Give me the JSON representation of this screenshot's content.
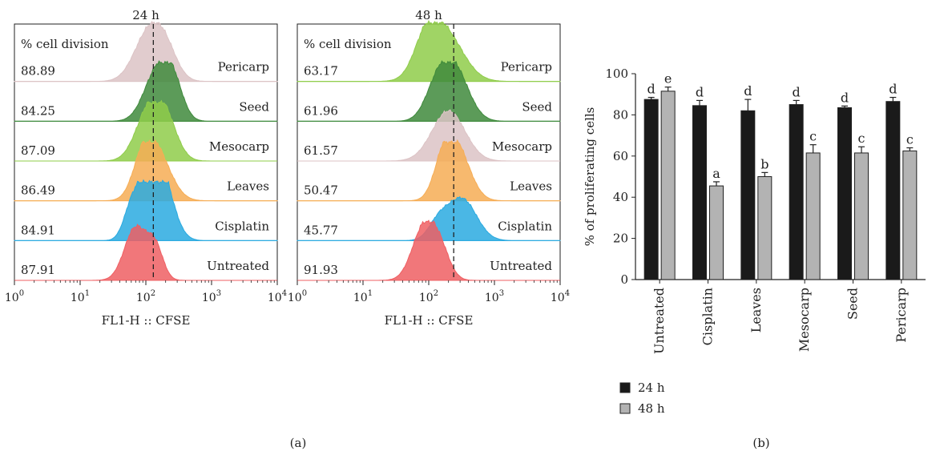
{
  "panel_a": {
    "caption": "(a)",
    "cell_division_label": "% cell division",
    "row_order": [
      "Pericarp",
      "Seed",
      "Mesocarp",
      "Leaves",
      "Cisplatin",
      "Untreated"
    ],
    "colors": {
      "Pericarp_24": "#dcc3c5",
      "Pericarp_48": "#8fcc4a",
      "Seed": "#3f8a3c",
      "Mesocarp_24": "#8fcc4a",
      "Mesocarp_48": "#dcc3c5",
      "Leaves": "#f6ad55",
      "Cisplatin": "#2aaae0",
      "Untreated": "#ef5f63"
    }
  },
  "chart_data": [
    {
      "type": "histogram",
      "title": "24 h",
      "xlabel": "FL1-H :: CFSE",
      "x_scale": "log",
      "xlim": [
        1,
        10000
      ],
      "x_ticks": [
        "10^0",
        "10^1",
        "10^2",
        "10^3",
        "10^4"
      ],
      "gate_x": 130,
      "series": [
        {
          "name": "Pericarp",
          "value_label": "88.89",
          "peaks": [
            {
              "x": 110,
              "h": 0.85,
              "w": 0.22
            },
            {
              "x": 200,
              "h": 0.45,
              "w": 0.18
            }
          ]
        },
        {
          "name": "Seed",
          "value_label": "84.25",
          "peaks": [
            {
              "x": 150,
              "h": 0.9,
              "w": 0.2
            },
            {
              "x": 260,
              "h": 0.55,
              "w": 0.15
            }
          ]
        },
        {
          "name": "Mesocarp",
          "value_label": "87.09",
          "peaks": [
            {
              "x": 110,
              "h": 0.85,
              "w": 0.2
            },
            {
              "x": 200,
              "h": 0.65,
              "w": 0.18
            }
          ]
        },
        {
          "name": "Leaves",
          "value_label": "86.49",
          "peaks": [
            {
              "x": 140,
              "h": 0.9,
              "w": 0.22
            },
            {
              "x": 90,
              "h": 0.45,
              "w": 0.15
            }
          ]
        },
        {
          "name": "Cisplatin",
          "value_label": "84.91",
          "peaks": [
            {
              "x": 110,
              "h": 0.95,
              "w": 0.18
            },
            {
              "x": 180,
              "h": 0.9,
              "w": 0.18
            },
            {
              "x": 60,
              "h": 0.45,
              "w": 0.12
            }
          ]
        },
        {
          "name": "Untreated",
          "value_label": "87.91",
          "peaks": [
            {
              "x": 70,
              "h": 0.95,
              "w": 0.17
            },
            {
              "x": 140,
              "h": 0.55,
              "w": 0.12
            }
          ]
        }
      ]
    },
    {
      "type": "histogram",
      "title": "48 h",
      "xlabel": "FL1-H :: CFSE",
      "x_scale": "log",
      "xlim": [
        1,
        10000
      ],
      "x_ticks": [
        "10^0",
        "10^1",
        "10^2",
        "10^3",
        "10^4"
      ],
      "gate_x": 240,
      "series": [
        {
          "name": "Pericarp",
          "value_label": "63.17",
          "peaks": [
            {
              "x": 170,
              "h": 0.9,
              "w": 0.28
            },
            {
              "x": 90,
              "h": 0.5,
              "w": 0.18
            }
          ]
        },
        {
          "name": "Seed",
          "value_label": "61.96",
          "peaks": [
            {
              "x": 240,
              "h": 0.95,
              "w": 0.22
            },
            {
              "x": 130,
              "h": 0.45,
              "w": 0.18
            }
          ]
        },
        {
          "name": "Mesocarp",
          "value_label": "61.57",
          "peaks": [
            {
              "x": 200,
              "h": 0.9,
              "w": 0.25
            }
          ]
        },
        {
          "name": "Leaves",
          "value_label": "50.47",
          "peaks": [
            {
              "x": 270,
              "h": 0.9,
              "w": 0.2
            },
            {
              "x": 170,
              "h": 0.55,
              "w": 0.15
            }
          ]
        },
        {
          "name": "Cisplatin",
          "value_label": "45.77",
          "peaks": [
            {
              "x": 320,
              "h": 0.75,
              "w": 0.22
            },
            {
              "x": 140,
              "h": 0.3,
              "w": 0.15
            }
          ]
        },
        {
          "name": "Untreated",
          "value_label": "91.93",
          "peaks": [
            {
              "x": 85,
              "h": 0.95,
              "w": 0.18
            },
            {
              "x": 150,
              "h": 0.45,
              "w": 0.15
            }
          ]
        }
      ]
    },
    {
      "type": "bar",
      "title": "",
      "caption": "(b)",
      "xlabel": "",
      "ylabel": "% of proliferating cells",
      "ylim": [
        0,
        100
      ],
      "y_ticks": [
        0,
        20,
        40,
        60,
        80,
        100
      ],
      "categories": [
        "Untreated",
        "Cisplatin",
        "Leaves",
        "Mesocarp",
        "Seed",
        "Pericarp"
      ],
      "series": [
        {
          "name": "24 h",
          "color": "#1a1a1a",
          "values": [
            87.5,
            84.5,
            82,
            85,
            83.5,
            86.5
          ],
          "errors": [
            1,
            2.5,
            5.5,
            2,
            0.8,
            2
          ],
          "letters": [
            "d",
            "d",
            "d",
            "d",
            "d",
            "d"
          ]
        },
        {
          "name": "48 h",
          "color": "#b3b3b3",
          "values": [
            91.5,
            45.5,
            50,
            61.5,
            61.5,
            62.5
          ],
          "errors": [
            2,
            2,
            2,
            4,
            3,
            1.5
          ],
          "letters": [
            "e",
            "a",
            "b",
            "c",
            "c",
            "c"
          ]
        }
      ],
      "legend_position": "bottom-left"
    }
  ]
}
